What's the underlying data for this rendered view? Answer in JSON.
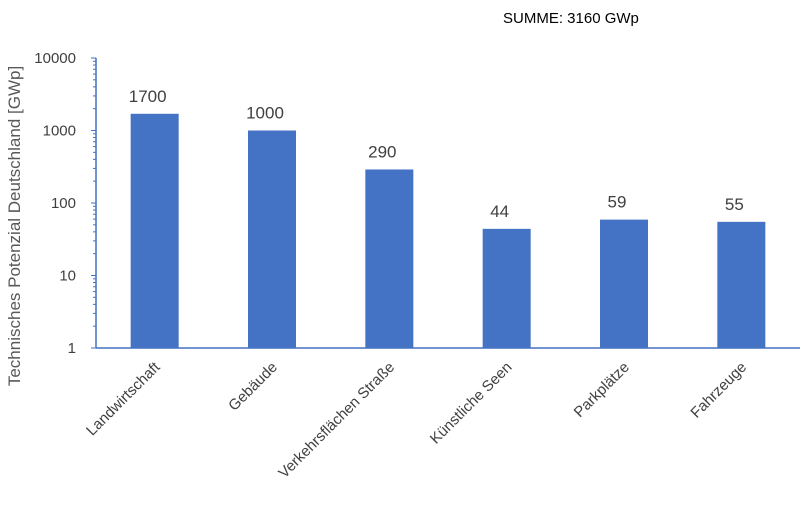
{
  "summary_text": "SUMME: 3160 GWp",
  "chart_data": {
    "type": "bar",
    "categories": [
      "Landwirtschaft",
      "Gebäude",
      "Verkehrsflächen Straße",
      "Künstliche Seen",
      "Parkplätze",
      "Fahrzeuge"
    ],
    "values": [
      1700,
      1000,
      290,
      44,
      59,
      55
    ],
    "data_labels": [
      "1700",
      "1000",
      "290",
      "44",
      "59",
      "55"
    ],
    "ylabel": "Technisches Potenzial Deutschland [GWp]",
    "xlabel": "",
    "yscale": "log",
    "ylim": [
      1,
      10000
    ],
    "yticks": [
      "1",
      "10",
      "100",
      "1000",
      "10000"
    ],
    "grid": false,
    "bar_color": "#4472C4",
    "axis_color": "#4472C4"
  }
}
